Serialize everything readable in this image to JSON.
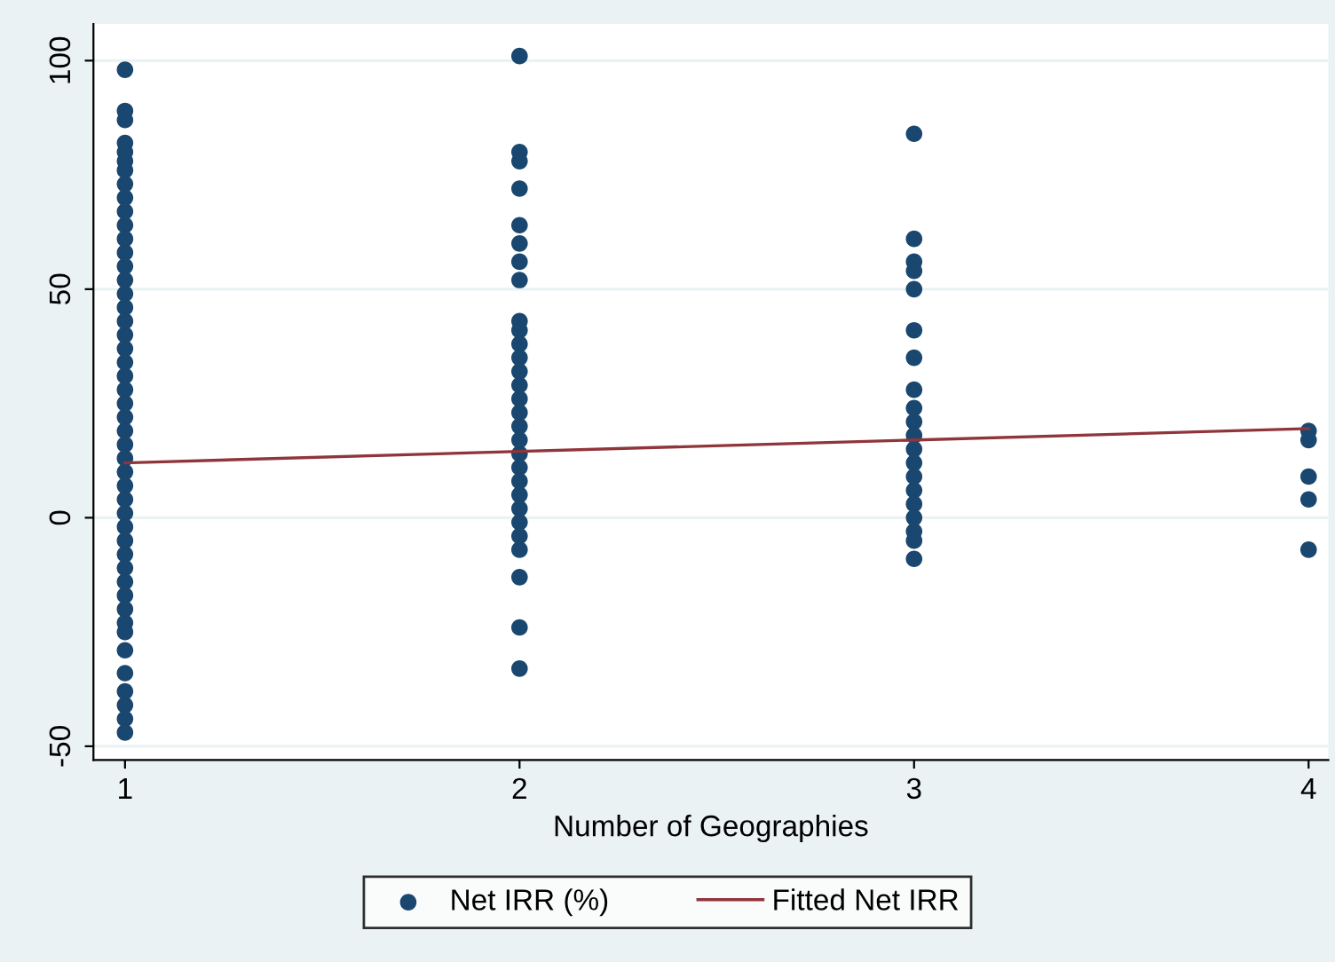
{
  "chart_data": {
    "type": "scatter",
    "xlabel": "Number of Geographies",
    "x": [
      1,
      1,
      1,
      1,
      1,
      1,
      1,
      1,
      1,
      1,
      1,
      1,
      1,
      1,
      1,
      1,
      1,
      1,
      1,
      1,
      1,
      1,
      1,
      1,
      1,
      1,
      1,
      1,
      1,
      1,
      1,
      1,
      1,
      1,
      1,
      1,
      1,
      1,
      1,
      1,
      1,
      1,
      1,
      1,
      1,
      1,
      1,
      2,
      2,
      2,
      2,
      2,
      2,
      2,
      2,
      2,
      2,
      2,
      2,
      2,
      2,
      2,
      2,
      2,
      2,
      2,
      2,
      2,
      2,
      2,
      2,
      2,
      2,
      2,
      2,
      2,
      3,
      3,
      3,
      3,
      3,
      3,
      3,
      3,
      3,
      3,
      3,
      3,
      3,
      3,
      3,
      3,
      3,
      3,
      3,
      3,
      4,
      4,
      4,
      4,
      4
    ],
    "series": [
      {
        "name": "Net IRR (%)",
        "type": "scatter",
        "color": "#1a476f",
        "marker": "circle",
        "values": [
          98,
          89,
          87,
          82,
          80,
          78,
          76,
          73,
          70,
          67,
          64,
          61,
          58,
          55,
          52,
          49,
          46,
          43,
          40,
          37,
          34,
          31,
          28,
          25,
          22,
          19,
          16,
          13,
          10,
          7,
          4,
          1,
          -2,
          -5,
          -8,
          -11,
          -14,
          -17,
          -20,
          -23,
          -25,
          -29,
          -34,
          -38,
          -41,
          -44,
          -47,
          101,
          80,
          78,
          72,
          64,
          60,
          56,
          52,
          43,
          41,
          38,
          35,
          32,
          29,
          26,
          23,
          20,
          17,
          14,
          11,
          8,
          5,
          2,
          -1,
          -4,
          -7,
          -13,
          -24,
          -33,
          84,
          61,
          56,
          54,
          50,
          41,
          35,
          28,
          24,
          21,
          18,
          15,
          12,
          9,
          6,
          3,
          0,
          -3,
          -5,
          -9,
          19,
          17,
          9,
          4,
          -7
        ]
      },
      {
        "name": "Fitted Net IRR",
        "type": "line",
        "color": "#90353b",
        "x": [
          1,
          4
        ],
        "values": [
          12,
          19.5
        ]
      }
    ],
    "xlim": [
      0.92,
      4.05
    ],
    "xticks": [
      1,
      2,
      3,
      4
    ],
    "ylim": [
      -53,
      108
    ],
    "yticks": [
      -50,
      0,
      50,
      100
    ],
    "grid": "y",
    "legend": "bottom"
  }
}
